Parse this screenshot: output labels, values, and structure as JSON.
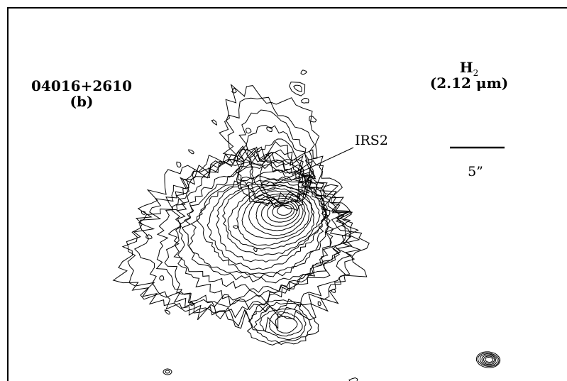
{
  "figure": {
    "source_name": "04016+2610",
    "panel": "(b)",
    "line": "H",
    "line_sub": "2",
    "wavelength": "(2.12 μm)",
    "source_label": "IRS2",
    "scale_label": "5”"
  },
  "contour_plot": {
    "type": "contour",
    "peak_name": "IRS2",
    "scale_bar_arcsec": 5
  }
}
